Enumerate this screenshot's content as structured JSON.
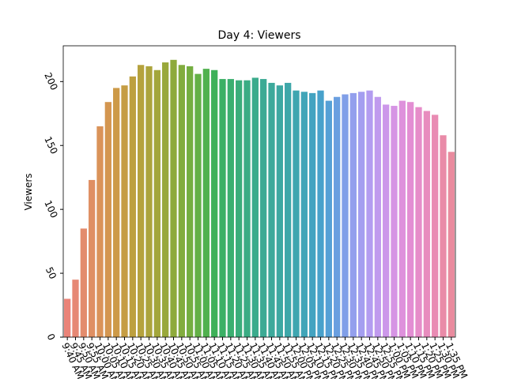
{
  "chart_data": {
    "type": "bar",
    "title": "Day 4: Viewers",
    "y_label": "Viewers",
    "categories": [
      "9:40 AM",
      "9:45 AM",
      "9:50 AM",
      "9:55 AM",
      "10:00 AM",
      "10:05 AM",
      "10:10 AM",
      "10:15 AM",
      "10:20 AM",
      "10:25 AM",
      "10:30 AM",
      "10:35 AM",
      "10:40 AM",
      "10:45 AM",
      "10:50 AM",
      "10:55 AM",
      "11:00 AM",
      "11:05 AM",
      "11:10 AM",
      "11:15 AM",
      "11:20 AM",
      "11:25 AM",
      "11:30 AM",
      "11:35 AM",
      "11:40 AM",
      "11:45 AM",
      "11:50 AM",
      "11:55 AM",
      "12:00 PM",
      "12:05 PM",
      "12:10 PM",
      "12:15 PM",
      "12:20 PM",
      "12:25 PM",
      "12:30 PM",
      "12:35 PM",
      "12:40 PM",
      "12:45 PM",
      "12:50 PM",
      "12:55 PM",
      "1:00 PM",
      "1:05 PM",
      "1:10 PM",
      "1:15 PM",
      "1:20 PM",
      "1:25 PM",
      "1:30 PM",
      "1:35 PM"
    ],
    "values": [
      30,
      45,
      85,
      123,
      165,
      184,
      195,
      197,
      204,
      213,
      212,
      209,
      215,
      217,
      213,
      212,
      206,
      210,
      209,
      202,
      202,
      201,
      201,
      203,
      202,
      199,
      197,
      199,
      193,
      192,
      191,
      193,
      185,
      188,
      190,
      191,
      192,
      193,
      188,
      182,
      181,
      185,
      184,
      180,
      177,
      174,
      158,
      145
    ],
    "colors": [
      "#ea8378",
      "#e68874",
      "#e38c6d",
      "#df8f63",
      "#da9359",
      "#d49650",
      "#cd9a48",
      "#c59d43",
      "#bda03f",
      "#b5a23d",
      "#aca43c",
      "#a3a63b",
      "#99a83b",
      "#8eaa3c",
      "#82ac3e",
      "#74ae41",
      "#63b046",
      "#50b14e",
      "#3fb159",
      "#3bb065",
      "#3baf70",
      "#3bad7b",
      "#3bac84",
      "#3bab8c",
      "#3caa94",
      "#3ca99b",
      "#3da8a2",
      "#3ea7a9",
      "#3fa6b0",
      "#41a5b8",
      "#43a3c1",
      "#48a1cb",
      "#55a0d6",
      "#6a9fe0",
      "#809fe8",
      "#939fed",
      "#a49ef0",
      "#b39cf0",
      "#c09aee",
      "#cc97ea",
      "#d694e4",
      "#de91dc",
      "#e38ed3",
      "#e68dc9",
      "#e88cbe",
      "#e98bb3",
      "#e98ba8",
      "#e98b9e"
    ],
    "ylim": [
      0,
      228
    ],
    "yticks": [
      0,
      50,
      100,
      150,
      200
    ],
    "grid": false
  }
}
